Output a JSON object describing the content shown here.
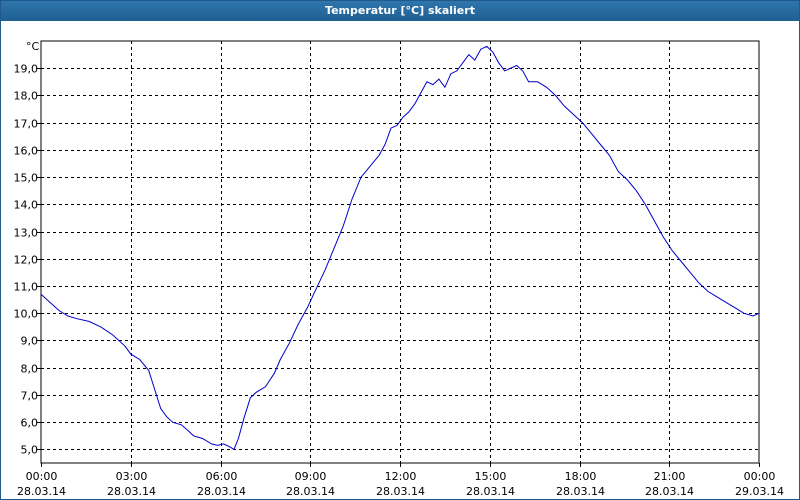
{
  "window": {
    "title": "Temperatur [°C] skaliert"
  },
  "chart_data": {
    "type": "line",
    "title": "Temperatur [°C] skaliert",
    "ylabel": "°C",
    "xlabel": "",
    "ylim": [
      4.5,
      20.0
    ],
    "yticks": [
      "5,0",
      "6,0",
      "7,0",
      "8,0",
      "9,0",
      "10,0",
      "11,0",
      "12,0",
      "13,0",
      "14,0",
      "15,0",
      "16,0",
      "17,0",
      "18,0",
      "19,0"
    ],
    "ytick_values": [
      5,
      6,
      7,
      8,
      9,
      10,
      11,
      12,
      13,
      14,
      15,
      16,
      17,
      18,
      19
    ],
    "xticks": [
      {
        "time": "00:00",
        "date": "28.03.14"
      },
      {
        "time": "03:00",
        "date": "28.03.14"
      },
      {
        "time": "06:00",
        "date": "28.03.14"
      },
      {
        "time": "09:00",
        "date": "28.03.14"
      },
      {
        "time": "12:00",
        "date": "28.03.14"
      },
      {
        "time": "15:00",
        "date": "28.03.14"
      },
      {
        "time": "18:00",
        "date": "28.03.14"
      },
      {
        "time": "21:00",
        "date": "28.03.14"
      },
      {
        "time": "00:00",
        "date": "29.03.14"
      }
    ],
    "x_unit": "hours",
    "xlim": [
      0,
      24
    ],
    "grid": true,
    "line_color": "#0000cc",
    "series": [
      {
        "x": [
          0,
          0.3,
          0.6,
          0.9,
          1.2,
          1.6,
          2.0,
          2.4,
          2.8,
          3.0,
          3.3,
          3.6,
          3.8,
          4.0,
          4.2,
          4.4,
          4.7,
          4.9,
          5.1,
          5.4,
          5.7,
          5.9,
          6.1,
          6.3,
          6.45,
          6.6,
          6.8,
          7.0,
          7.2,
          7.5,
          7.8,
          8.0,
          8.3,
          8.6,
          8.9,
          9.2,
          9.5,
          9.8,
          10.1,
          10.4,
          10.7,
          11.0,
          11.3,
          11.5,
          11.7,
          11.9,
          12.1,
          12.3,
          12.5,
          12.7,
          12.9,
          13.1,
          13.3,
          13.5,
          13.7,
          13.9,
          14.1,
          14.3,
          14.5,
          14.7,
          14.9,
          15.1,
          15.3,
          15.5,
          15.7,
          15.9,
          16.1,
          16.3,
          16.6,
          16.9,
          17.2,
          17.5,
          17.8,
          18.1,
          18.4,
          18.7,
          19.0,
          19.3,
          19.6,
          19.9,
          20.2,
          20.5,
          20.8,
          21.1,
          21.4,
          21.7,
          22.0,
          22.3,
          22.6,
          22.9,
          23.2,
          23.5,
          23.8,
          24.0
        ],
        "y": [
          10.7,
          10.4,
          10.1,
          9.9,
          9.8,
          9.7,
          9.5,
          9.2,
          8.8,
          8.5,
          8.3,
          7.9,
          7.2,
          6.5,
          6.2,
          6.0,
          5.9,
          5.7,
          5.5,
          5.4,
          5.2,
          5.15,
          5.2,
          5.1,
          5.0,
          5.4,
          6.2,
          6.9,
          7.1,
          7.3,
          7.8,
          8.3,
          8.9,
          9.6,
          10.2,
          10.9,
          11.6,
          12.4,
          13.2,
          14.2,
          15.0,
          15.4,
          15.8,
          16.2,
          16.8,
          16.9,
          17.2,
          17.4,
          17.7,
          18.1,
          18.5,
          18.4,
          18.6,
          18.3,
          18.8,
          18.9,
          19.2,
          19.5,
          19.3,
          19.7,
          19.8,
          19.6,
          19.2,
          18.9,
          19.0,
          19.1,
          18.9,
          18.5,
          18.5,
          18.3,
          18.0,
          17.6,
          17.3,
          17.0,
          16.6,
          16.2,
          15.8,
          15.2,
          14.9,
          14.5,
          14.0,
          13.4,
          12.8,
          12.3,
          11.9,
          11.5,
          11.1,
          10.8,
          10.6,
          10.4,
          10.2,
          10.0,
          9.9,
          10.0
        ]
      }
    ]
  }
}
